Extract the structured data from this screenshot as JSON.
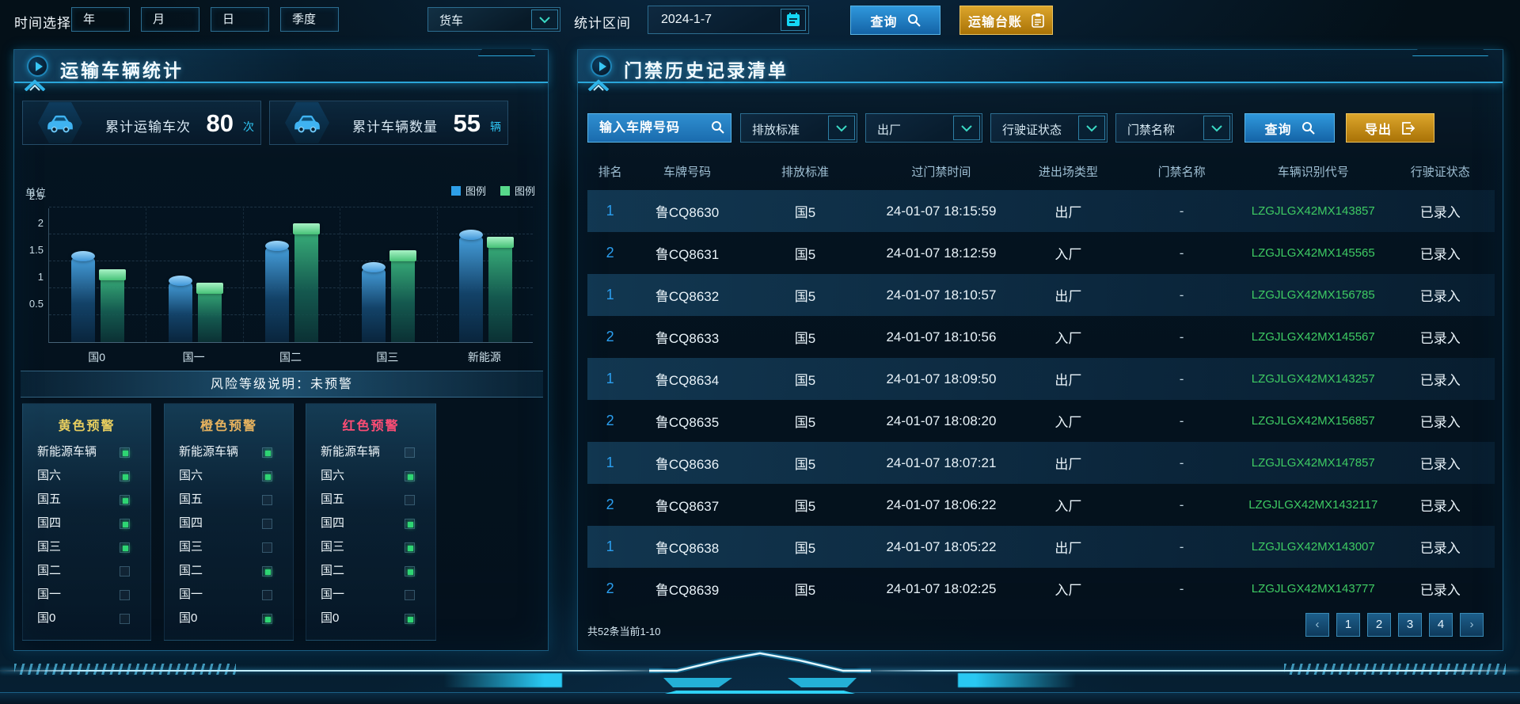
{
  "topbar": {
    "time_label": "时间选择",
    "period_buttons": [
      "年",
      "月",
      "日",
      "季度"
    ],
    "vehicle_type": "货车",
    "range_label": "统计区间",
    "date_value": "2024-1-7",
    "query_button": "查询",
    "ledger_button": "运输台账"
  },
  "left_panel": {
    "title": "运输车辆统计",
    "stat_cards": [
      {
        "label": "累计运输车次",
        "value": "80",
        "unit": "次"
      },
      {
        "label": "累计车辆数量",
        "value": "55",
        "unit": "辆"
      }
    ],
    "risk_banner": "风险等级说明：未预警",
    "warning_groups": [
      {
        "title": "黄色预警",
        "color": "#e9cf5f",
        "items": [
          {
            "label": "新能源车辆",
            "checked": true
          },
          {
            "label": "国六",
            "checked": true
          },
          {
            "label": "国五",
            "checked": true
          },
          {
            "label": "国四",
            "checked": true
          },
          {
            "label": "国三",
            "checked": true
          },
          {
            "label": "国二",
            "checked": false
          },
          {
            "label": "国一",
            "checked": false
          },
          {
            "label": "国0",
            "checked": false
          }
        ]
      },
      {
        "title": "橙色预警",
        "color": "#e9b45f",
        "items": [
          {
            "label": "新能源车辆",
            "checked": true
          },
          {
            "label": "国六",
            "checked": true
          },
          {
            "label": "国五",
            "checked": false
          },
          {
            "label": "国四",
            "checked": false
          },
          {
            "label": "国三",
            "checked": false
          },
          {
            "label": "国二",
            "checked": true
          },
          {
            "label": "国一",
            "checked": false
          },
          {
            "label": "国0",
            "checked": true
          }
        ]
      },
      {
        "title": "红色预警",
        "color": "#ff4d75",
        "items": [
          {
            "label": "新能源车辆",
            "checked": false
          },
          {
            "label": "国六",
            "checked": true
          },
          {
            "label": "国五",
            "checked": false
          },
          {
            "label": "国四",
            "checked": true
          },
          {
            "label": "国三",
            "checked": true
          },
          {
            "label": "国二",
            "checked": true
          },
          {
            "label": "国一",
            "checked": false
          },
          {
            "label": "国0",
            "checked": true
          }
        ]
      }
    ]
  },
  "chart_data": {
    "type": "bar",
    "title": "",
    "unit_label": "单位",
    "categories": [
      "国0",
      "国一",
      "国二",
      "国三",
      "新能源"
    ],
    "series": [
      {
        "name": "图例",
        "color": "#2e9fe8",
        "values": [
          1.6,
          1.15,
          1.8,
          1.4,
          2.0
        ]
      },
      {
        "name": "图例",
        "color": "#57d98b",
        "values": [
          1.25,
          1.0,
          2.1,
          1.6,
          1.85
        ]
      }
    ],
    "ylim": [
      0,
      2.5
    ],
    "yticks": [
      0.5,
      1,
      1.5,
      2,
      2.5
    ],
    "grid": "dashed",
    "legend_position": "top-right"
  },
  "right_panel": {
    "title": "门禁历史记录清单",
    "filters": {
      "plate_placeholder": "输入车牌号码",
      "dropdowns": [
        "排放标准",
        "出厂",
        "行驶证状态",
        "门禁名称"
      ],
      "query_button": "查询",
      "export_button": "导出"
    },
    "table": {
      "headers": [
        "排名",
        "车牌号码",
        "排放标准",
        "过门禁时间",
        "进出场类型",
        "门禁名称",
        "车辆识别代号",
        "行驶证状态"
      ],
      "rows": [
        {
          "rank": "1",
          "plate": "鲁CQ8630",
          "standard": "国5",
          "time": "24-01-07 18:15:59",
          "type": "出厂",
          "gate": "-",
          "vin": "LZGJLGX42MX143857",
          "license": "已录入"
        },
        {
          "rank": "2",
          "plate": "鲁CQ8631",
          "standard": "国5",
          "time": "24-01-07 18:12:59",
          "type": "入厂",
          "gate": "-",
          "vin": "LZGJLGX42MX145565",
          "license": "已录入"
        },
        {
          "rank": "1",
          "plate": "鲁CQ8632",
          "standard": "国5",
          "time": "24-01-07 18:10:57",
          "type": "出厂",
          "gate": "-",
          "vin": "LZGJLGX42MX156785",
          "license": "已录入"
        },
        {
          "rank": "2",
          "plate": "鲁CQ8633",
          "standard": "国5",
          "time": "24-01-07 18:10:56",
          "type": "入厂",
          "gate": "-",
          "vin": "LZGJLGX42MX145567",
          "license": "已录入"
        },
        {
          "rank": "1",
          "plate": "鲁CQ8634",
          "standard": "国5",
          "time": "24-01-07 18:09:50",
          "type": "出厂",
          "gate": "-",
          "vin": "LZGJLGX42MX143257",
          "license": "已录入"
        },
        {
          "rank": "2",
          "plate": "鲁CQ8635",
          "standard": "国5",
          "time": "24-01-07 18:08:20",
          "type": "入厂",
          "gate": "-",
          "vin": "LZGJLGX42MX156857",
          "license": "已录入"
        },
        {
          "rank": "1",
          "plate": "鲁CQ8636",
          "standard": "国5",
          "time": "24-01-07 18:07:21",
          "type": "出厂",
          "gate": "-",
          "vin": "LZGJLGX42MX147857",
          "license": "已录入"
        },
        {
          "rank": "2",
          "plate": "鲁CQ8637",
          "standard": "国5",
          "time": "24-01-07 18:06:22",
          "type": "入厂",
          "gate": "-",
          "vin": "LZGJLGX42MX1432117",
          "license": "已录入"
        },
        {
          "rank": "1",
          "plate": "鲁CQ8638",
          "standard": "国5",
          "time": "24-01-07 18:05:22",
          "type": "出厂",
          "gate": "-",
          "vin": "LZGJLGX42MX143007",
          "license": "已录入"
        },
        {
          "rank": "2",
          "plate": "鲁CQ8639",
          "standard": "国5",
          "time": "24-01-07 18:02:25",
          "type": "入厂",
          "gate": "-",
          "vin": "LZGJLGX42MX143777",
          "license": "已录入"
        }
      ]
    },
    "pagination": {
      "summary": "共52条当前1-10",
      "prev": "‹",
      "pages": [
        "1",
        "2",
        "3",
        "4"
      ],
      "next": "›"
    }
  }
}
